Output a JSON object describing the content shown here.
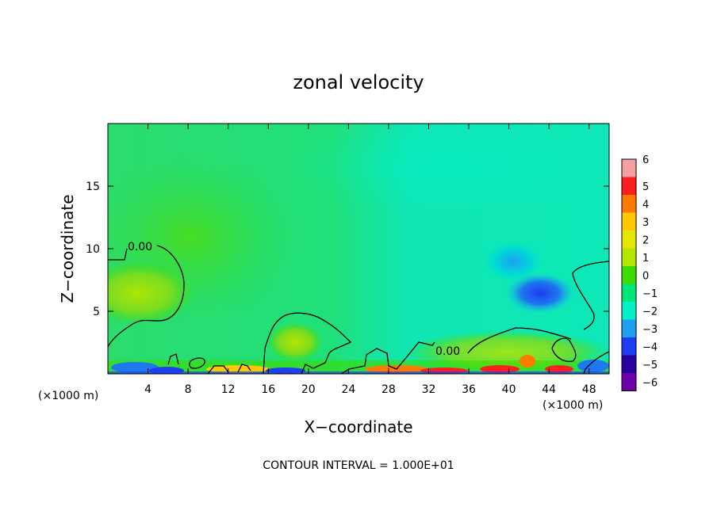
{
  "chart_data": {
    "type": "heatmap",
    "title": "zonal velocity",
    "xlabel": "X−coordinate",
    "ylabel": "Z−coordinate",
    "x_unit_label": "(×1000 m)",
    "z_unit_label": "(×1000 m)",
    "xlim": [
      0,
      50
    ],
    "ylim": [
      0,
      20
    ],
    "x_ticks": [
      4,
      8,
      12,
      16,
      20,
      24,
      28,
      32,
      36,
      40,
      44,
      48
    ],
    "x_tick_labels": [
      "4",
      "8",
      "12",
      "16",
      "20",
      "24",
      "28",
      "32",
      "36",
      "40",
      "44",
      "48"
    ],
    "y_ticks": [
      5,
      10,
      15
    ],
    "y_tick_labels": [
      "5",
      "10",
      "15"
    ],
    "contour_labels": [
      {
        "text": "0.00",
        "x": 3.6,
        "z": 10.2
      },
      {
        "text": "0.00",
        "x": 34.5,
        "z": 1.8
      }
    ],
    "footer": "CONTOUR INTERVAL = 1.000E+01",
    "colorbar": {
      "levels": [
        6,
        5,
        4,
        3,
        2,
        1,
        0,
        -1,
        -2,
        -3,
        -4,
        -5,
        -6
      ],
      "labels": [
        "6",
        "5",
        "4",
        "3",
        "2",
        "1",
        "0",
        "−1",
        "−2",
        "−3",
        "−4",
        "−5",
        "−6"
      ],
      "colors": [
        "#f5a0a0",
        "#ff1e1e",
        "#ff7a00",
        "#ffc800",
        "#e6e600",
        "#b4e600",
        "#3cdc00",
        "#00e678",
        "#00f0c8",
        "#1ea0f0",
        "#1e3cf0",
        "#2800a0",
        "#6e00aa"
      ]
    },
    "features": [
      {
        "kind": "blob",
        "x": 42.8,
        "z": 6.5,
        "rx": 3.5,
        "rz": 1.6,
        "value": -3.6
      },
      {
        "kind": "blob",
        "x": 40.5,
        "z": 9.2,
        "rx": 2.2,
        "rz": 1.5,
        "value": -2.3
      },
      {
        "kind": "blob",
        "x": 4.0,
        "z": 7.0,
        "rx": 6.0,
        "rz": 2.5,
        "value": 0.6
      },
      {
        "kind": "blob",
        "x": 19.0,
        "z": 2.5,
        "rx": 2.5,
        "rz": 1.5,
        "value": 0.8
      }
    ]
  }
}
